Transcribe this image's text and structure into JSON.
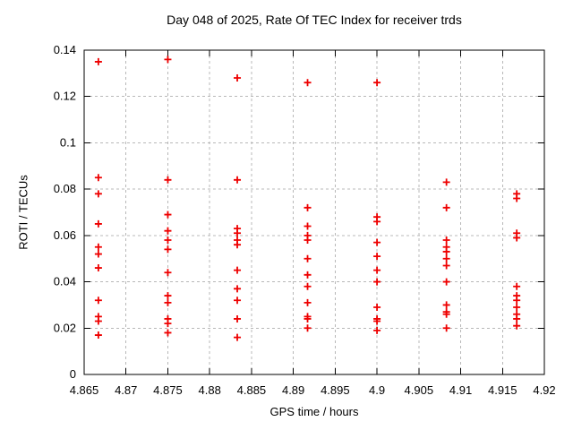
{
  "chart_data": {
    "type": "scatter",
    "title": "Day 048 of 2025, Rate Of TEC Index for receiver trds",
    "xlabel": "GPS time / hours",
    "ylabel": "ROTI / TECUs",
    "xlim": [
      4.865,
      4.92
    ],
    "ylim": [
      0,
      0.14
    ],
    "x_tick_labels": [
      "4.865",
      "4.87",
      "4.875",
      "4.88",
      "4.885",
      "4.89",
      "4.895",
      "4.9",
      "4.905",
      "4.91",
      "4.915",
      "4.92"
    ],
    "y_tick_labels": [
      "0",
      "0.02",
      "0.04",
      "0.06",
      "0.08",
      "0.1",
      "0.12",
      "0.14"
    ],
    "grid": true,
    "legend": "none",
    "marker": "plus",
    "marker_color": "#ee0000",
    "grid_color": "#b8b8b8",
    "border_color": "#000000",
    "series": [
      {
        "name": "ROTI",
        "points": [
          [
            4.8667,
            0.135
          ],
          [
            4.8667,
            0.085
          ],
          [
            4.8667,
            0.078
          ],
          [
            4.8667,
            0.065
          ],
          [
            4.8667,
            0.055
          ],
          [
            4.8667,
            0.052
          ],
          [
            4.8667,
            0.046
          ],
          [
            4.8667,
            0.032
          ],
          [
            4.8667,
            0.025
          ],
          [
            4.8667,
            0.023
          ],
          [
            4.8667,
            0.017
          ],
          [
            4.875,
            0.136
          ],
          [
            4.875,
            0.084
          ],
          [
            4.875,
            0.069
          ],
          [
            4.875,
            0.062
          ],
          [
            4.875,
            0.058
          ],
          [
            4.875,
            0.054
          ],
          [
            4.875,
            0.044
          ],
          [
            4.875,
            0.034
          ],
          [
            4.875,
            0.031
          ],
          [
            4.875,
            0.024
          ],
          [
            4.875,
            0.022
          ],
          [
            4.875,
            0.018
          ],
          [
            4.8833,
            0.128
          ],
          [
            4.8833,
            0.084
          ],
          [
            4.8833,
            0.063
          ],
          [
            4.8833,
            0.061
          ],
          [
            4.8833,
            0.058
          ],
          [
            4.8833,
            0.056
          ],
          [
            4.8833,
            0.045
          ],
          [
            4.8833,
            0.037
          ],
          [
            4.8833,
            0.032
          ],
          [
            4.8833,
            0.024
          ],
          [
            4.8833,
            0.016
          ],
          [
            4.8917,
            0.126
          ],
          [
            4.8917,
            0.072
          ],
          [
            4.8917,
            0.064
          ],
          [
            4.8917,
            0.06
          ],
          [
            4.8917,
            0.058
          ],
          [
            4.8917,
            0.05
          ],
          [
            4.8917,
            0.043
          ],
          [
            4.8917,
            0.038
          ],
          [
            4.8917,
            0.031
          ],
          [
            4.8917,
            0.025
          ],
          [
            4.8917,
            0.024
          ],
          [
            4.8917,
            0.02
          ],
          [
            4.9,
            0.126
          ],
          [
            4.9,
            0.068
          ],
          [
            4.9,
            0.066
          ],
          [
            4.9,
            0.057
          ],
          [
            4.9,
            0.051
          ],
          [
            4.9,
            0.045
          ],
          [
            4.9,
            0.04
          ],
          [
            4.9,
            0.029
          ],
          [
            4.9,
            0.024
          ],
          [
            4.9,
            0.023
          ],
          [
            4.9,
            0.019
          ],
          [
            4.9083,
            0.083
          ],
          [
            4.9083,
            0.072
          ],
          [
            4.9083,
            0.058
          ],
          [
            4.9083,
            0.055
          ],
          [
            4.9083,
            0.053
          ],
          [
            4.9083,
            0.05
          ],
          [
            4.9083,
            0.047
          ],
          [
            4.9083,
            0.04
          ],
          [
            4.9083,
            0.03
          ],
          [
            4.9083,
            0.027
          ],
          [
            4.9083,
            0.026
          ],
          [
            4.9083,
            0.02
          ],
          [
            4.9167,
            0.078
          ],
          [
            4.9167,
            0.076
          ],
          [
            4.9167,
            0.061
          ],
          [
            4.9167,
            0.059
          ],
          [
            4.9167,
            0.038
          ],
          [
            4.9167,
            0.034
          ],
          [
            4.9167,
            0.032
          ],
          [
            4.9167,
            0.029
          ],
          [
            4.9167,
            0.026
          ],
          [
            4.9167,
            0.024
          ],
          [
            4.9167,
            0.021
          ]
        ]
      }
    ]
  }
}
